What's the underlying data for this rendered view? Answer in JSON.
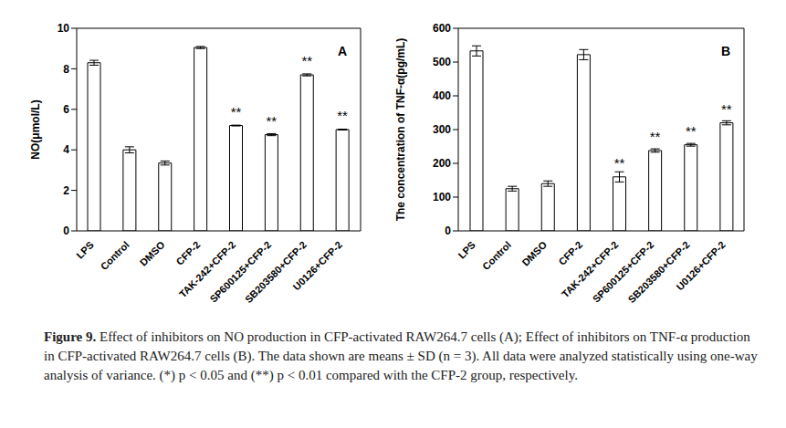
{
  "chart_data": [
    {
      "type": "bar",
      "panel": "A",
      "y_label": "NO(μmol/L)",
      "categories": [
        "LPS",
        "Control",
        "DMSO",
        "CFP-2",
        "TAK-242+CFP-2",
        "SP600125+CFP-2",
        "SB203580+CFP-2",
        "U0126+CFP-2"
      ],
      "values": [
        8.3,
        4.0,
        3.35,
        9.05,
        5.2,
        4.75,
        7.7,
        5.0
      ],
      "errors": [
        0.12,
        0.15,
        0.1,
        0.05,
        0.02,
        0.05,
        0.05,
        0.02
      ],
      "significance": [
        null,
        null,
        null,
        null,
        "**",
        "**",
        "**",
        "**"
      ],
      "color": "#ffffff",
      "ylim": [
        0,
        10
      ],
      "yticks": [
        0,
        2,
        4,
        6,
        8,
        10
      ],
      "grid": false
    },
    {
      "type": "bar",
      "panel": "B",
      "y_label": "The concentration of TNF-α(pg/mL)",
      "categories": [
        "LPS",
        "Control",
        "DMSO",
        "CFP-2",
        "TAK-242+CFP-2",
        "SP600125+CFP-2",
        "SB203580+CFP-2",
        "U0126+CFP-2"
      ],
      "values": [
        533,
        125,
        140,
        522,
        160,
        238,
        255,
        320
      ],
      "errors": [
        15,
        7,
        8,
        15,
        15,
        5,
        4,
        6
      ],
      "significance": [
        null,
        null,
        null,
        null,
        "**",
        "**",
        "**",
        "**"
      ],
      "color": "#ffffff",
      "ylim": [
        0,
        600
      ],
      "yticks": [
        0,
        100,
        200,
        300,
        400,
        500,
        600
      ],
      "grid": false
    }
  ],
  "caption_label": "Figure 9.",
  "caption": "Effect of inhibitors on NO production in CFP-activated RAW264.7 cells (A); Effect of inhibitors on TNF-α production in CFP-activated RAW264.7 cells (B). The data shown are means ± SD (n = 3). All data were analyzed statistically using one-way analysis of variance. (*) p < 0.05 and (**) p < 0.01 compared with the CFP-2 group, respectively."
}
